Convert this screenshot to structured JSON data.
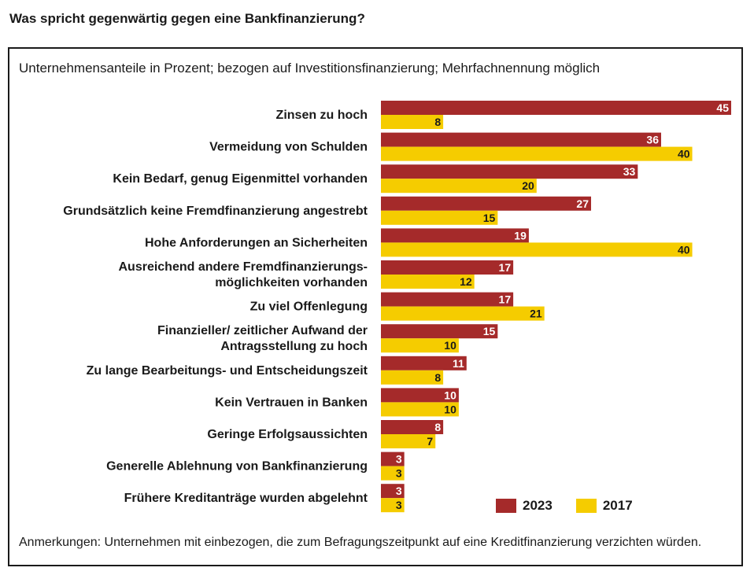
{
  "title": "Was spricht gegenwärtig gegen eine Bankfinanzierung?",
  "subtitle": "Unternehmensanteile in Prozent; bezogen auf Investitionsfinanzierung; Mehrfachnennung möglich",
  "note": "Anmerkungen: Unternehmen mit einbezogen, die zum Befragungszeitpunkt auf eine Kreditfinanzierung verzichten würden.",
  "colors": {
    "2023": "#a52a2a",
    "2017": "#f5cc00"
  },
  "chart_data": {
    "type": "bar",
    "orientation": "horizontal",
    "categories": [
      [
        "Zinsen zu hoch"
      ],
      [
        "Vermeidung von Schulden"
      ],
      [
        "Kein Bedarf, genug Eigenmittel vorhanden"
      ],
      [
        "Grundsätzlich keine Fremdfinanzierung angestrebt"
      ],
      [
        "Hohe Anforderungen an Sicherheiten"
      ],
      [
        "Ausreichend andere Fremdfinanzierungs-",
        "möglichkeiten vorhanden"
      ],
      [
        "Zu viel Offenlegung"
      ],
      [
        "Finanzieller/ zeitlicher Aufwand der",
        "Antragsstellung zu hoch"
      ],
      [
        "Zu lange Bearbeitungs- und Entscheidungszeit"
      ],
      [
        "Kein Vertrauen in Banken"
      ],
      [
        "Geringe Erfolgsaussichten"
      ],
      [
        "Generelle Ablehnung von Bankfinanzierung"
      ],
      [
        "Frühere Kreditanträge wurden abgelehnt"
      ]
    ],
    "series": [
      {
        "name": "2023",
        "values": [
          45,
          36,
          33,
          27,
          19,
          17,
          17,
          15,
          11,
          10,
          8,
          3,
          3
        ]
      },
      {
        "name": "2017",
        "values": [
          8,
          40,
          20,
          15,
          40,
          12,
          21,
          10,
          8,
          10,
          7,
          3,
          3
        ]
      }
    ],
    "xlim": [
      0,
      45
    ],
    "legend": "bottom-right"
  }
}
